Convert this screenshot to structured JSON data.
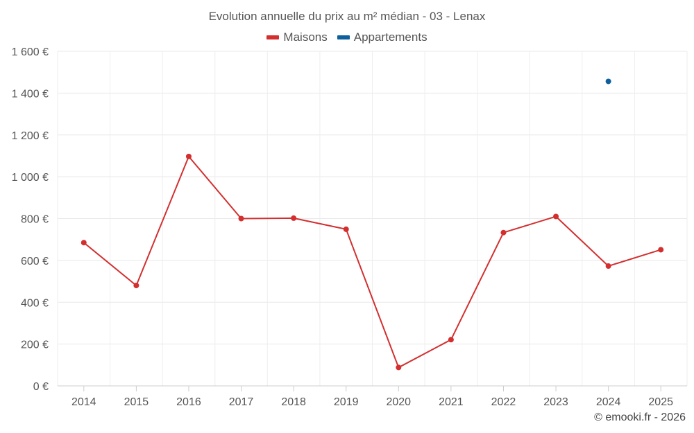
{
  "chart_data": {
    "type": "line",
    "title": "Evolution annuelle du prix au m² médian - 03 - Lenax",
    "x": [
      "2014",
      "2015",
      "2016",
      "2017",
      "2018",
      "2019",
      "2020",
      "2021",
      "2022",
      "2023",
      "2024",
      "2025"
    ],
    "series": [
      {
        "name": "Maisons",
        "color": "#d32f2f",
        "values": [
          685,
          480,
          1097,
          800,
          802,
          749,
          88,
          221,
          733,
          810,
          573,
          651
        ]
      },
      {
        "name": "Appartements",
        "color": "#0d5f9e",
        "values": [
          null,
          null,
          null,
          null,
          null,
          null,
          null,
          null,
          null,
          null,
          1456,
          null
        ]
      }
    ],
    "ylim": [
      0,
      1600
    ],
    "yticks": [
      0,
      200,
      400,
      600,
      800,
      1000,
      1200,
      1400,
      1600
    ],
    "ytick_labels": [
      "0 €",
      "200 €",
      "400 €",
      "600 €",
      "800 €",
      "1 000 €",
      "1 200 €",
      "1 400 €",
      "1 600 €"
    ],
    "grid": true,
    "legend_position": "top-center",
    "credits": "© emooki.fr - 2026"
  }
}
